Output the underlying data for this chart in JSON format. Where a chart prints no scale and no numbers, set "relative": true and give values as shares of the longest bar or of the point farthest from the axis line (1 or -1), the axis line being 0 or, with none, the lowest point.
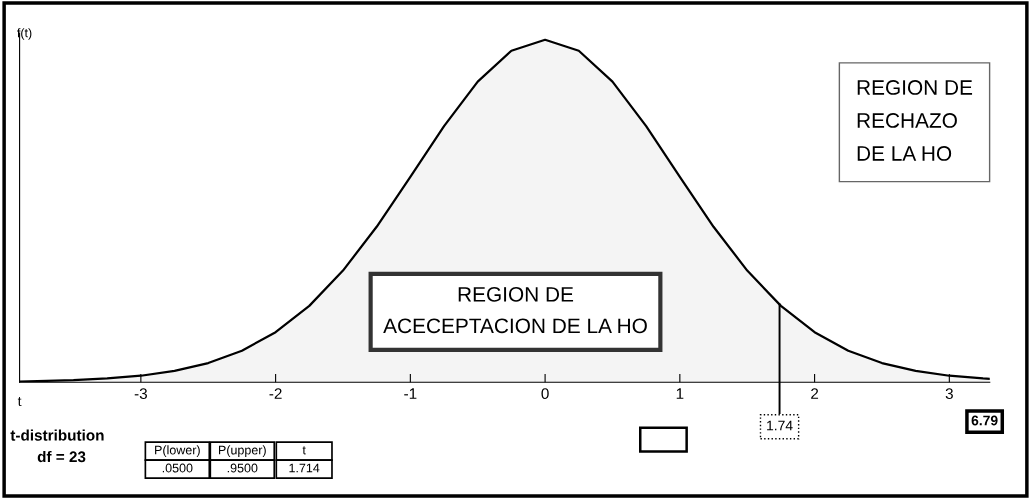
{
  "chart_data": {
    "type": "line",
    "relative": true,
    "xlabel": "t",
    "ylabel": "f(t)",
    "x": [
      -3.9,
      -3.5,
      -3.25,
      -3,
      -2.75,
      -2.5,
      -2.25,
      -2,
      -1.75,
      -1.5,
      -1.25,
      -1,
      -0.75,
      -0.5,
      -0.25,
      0,
      0.25,
      0.5,
      0.75,
      1,
      1.25,
      1.5,
      1.75,
      2,
      2.25,
      2.5,
      2.75,
      3,
      3.25,
      3.3
    ],
    "xlim": [
      -3.9,
      3.3
    ],
    "xticks": [
      -3,
      -2,
      -1,
      0,
      1,
      2,
      3
    ],
    "series": [
      {
        "color": "#000000",
        "values": [
          0.002,
          0.006,
          0.011,
          0.019,
          0.033,
          0.056,
          0.092,
          0.146,
          0.223,
          0.326,
          0.454,
          0.6,
          0.748,
          0.878,
          0.968,
          1,
          0.968,
          0.878,
          0.748,
          0.6,
          0.454,
          0.326,
          0.223,
          0.146,
          0.092,
          0.056,
          0.033,
          0.019,
          0.011,
          0.01
        ]
      }
    ],
    "ref_lines": [
      {
        "axis": "x",
        "value": 1.74,
        "label": "1.74",
        "color": "#000000"
      }
    ],
    "annotations": [
      "REGION DE\nACECEPTACION DE LA HO",
      "REGION DE\nRECHAZO\nDE LA HO",
      "t-distribution",
      "df = 23",
      "P(lower)",
      "P(upper)",
      "t",
      ".0500",
      ".9500",
      "1.714",
      "6.79"
    ],
    "grid": false,
    "marker": "none",
    "line_style": "solid"
  }
}
